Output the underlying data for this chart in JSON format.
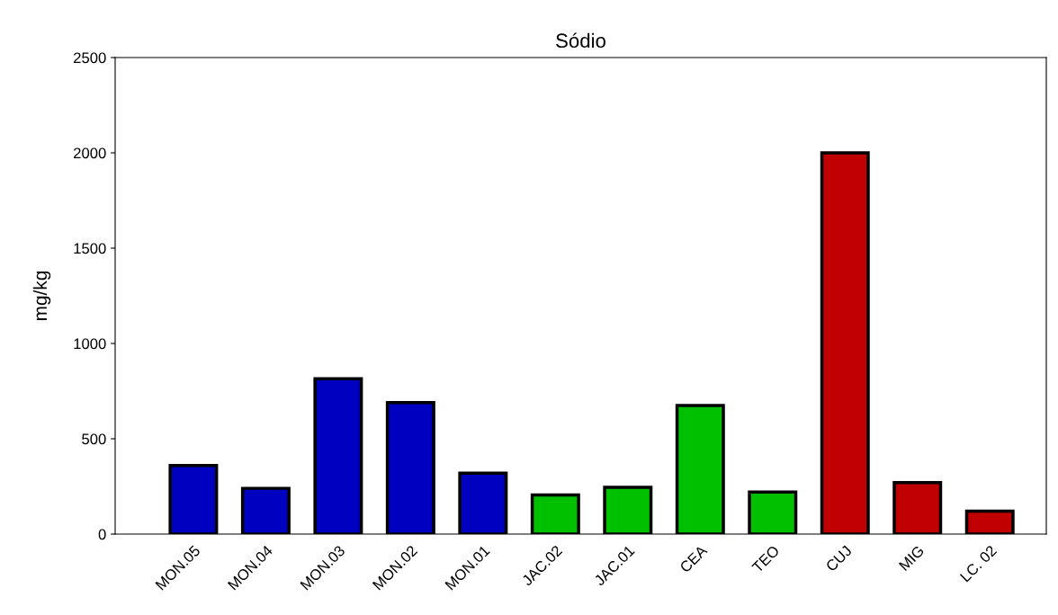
{
  "chart_data": {
    "type": "bar",
    "title": "Sódio",
    "ylabel": "mg/kg",
    "categories": [
      "MON.05",
      "MON.04",
      "MON.03",
      "MON.02",
      "MON.01",
      "JAC.02",
      "JAC.01",
      "CEA",
      "TEO",
      "CUJ",
      "MIG",
      "LC. 02"
    ],
    "values": [
      360,
      240,
      815,
      690,
      320,
      205,
      245,
      675,
      220,
      2000,
      270,
      120
    ],
    "colors": [
      "#0000c0",
      "#0000c0",
      "#0000c0",
      "#0000c0",
      "#0000c0",
      "#00c000",
      "#00c000",
      "#00c000",
      "#00c000",
      "#c00000",
      "#c00000",
      "#c00000"
    ],
    "ylim": [
      0,
      2500
    ],
    "yticks": [
      0,
      500,
      1000,
      1500,
      2000,
      2500
    ],
    "grid": false,
    "legend": false
  }
}
